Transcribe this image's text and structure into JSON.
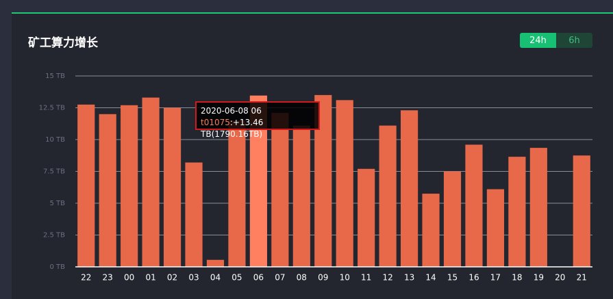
{
  "title": "矿工算力增长",
  "toggle": [
    "24h",
    "6h"
  ],
  "chart_data": {
    "type": "bar",
    "color": "#e8694a",
    "highlight_color": "#ff8060",
    "categories": [
      "22",
      "23",
      "00",
      "01",
      "02",
      "03",
      "04",
      "05",
      "06",
      "07",
      "08",
      "09",
      "10",
      "11",
      "12",
      "13",
      "14",
      "15",
      "16",
      "17",
      "18",
      "19",
      "20",
      "21"
    ],
    "values": [
      12.75,
      12.0,
      12.7,
      13.3,
      12.5,
      8.2,
      0.55,
      11.5,
      13.46,
      12.1,
      11.1,
      13.5,
      13.1,
      7.7,
      11.1,
      12.3,
      5.75,
      7.5,
      9.6,
      6.1,
      8.65,
      9.35,
      0,
      8.75
    ],
    "ylim": [
      0,
      15
    ],
    "yticks": [
      {
        "value": 0,
        "label": "0 TB"
      },
      {
        "value": 2.5,
        "label": "2.5 TB"
      },
      {
        "value": 5,
        "label": "5 TB"
      },
      {
        "value": 7.5,
        "label": "7.5 TB"
      },
      {
        "value": 10,
        "label": "10 TB"
      },
      {
        "value": 12.5,
        "label": "12.5 TB"
      },
      {
        "value": 15,
        "label": "15 TB"
      }
    ],
    "grid": true,
    "tooltip": {
      "title": "2020-06-08 06",
      "miner": "t01075",
      "text": ":+13.46 TB(1790.16TB)"
    }
  }
}
